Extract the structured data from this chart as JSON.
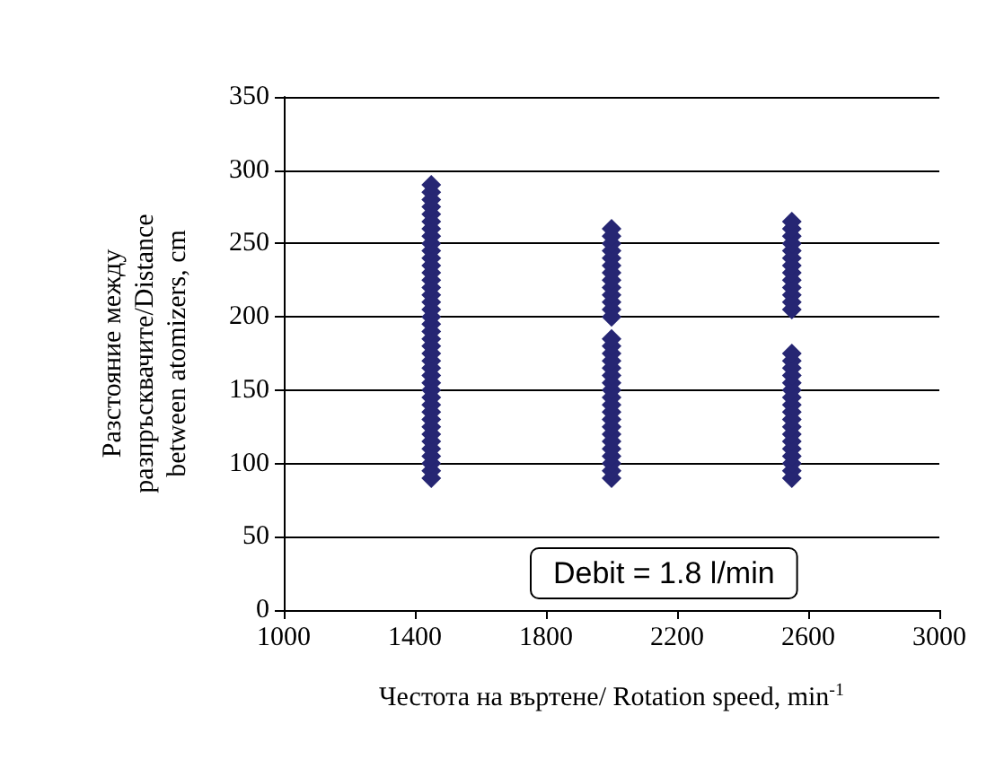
{
  "chart_data": {
    "type": "scatter",
    "xlabel": "Честота на въртене/ Rotation speed, min$^{-1}$",
    "ylabel": "Разстояние между\nразпръсквачите/Distance\nbetween atomizers, cm",
    "annotations": [
      "Debit = 1.8 l/min"
    ],
    "xlim": [
      1000,
      3000
    ],
    "xticks": [
      1000,
      1400,
      1800,
      2200,
      2600,
      3000
    ],
    "ylim": [
      0,
      350
    ],
    "yticks": [
      0,
      50,
      100,
      150,
      200,
      250,
      300,
      350
    ],
    "grid": "y",
    "marker": "diamond",
    "series": [
      {
        "color": "#262673",
        "x": [
          1450,
          1450,
          1450,
          1450,
          1450,
          1450,
          1450,
          1450,
          1450,
          1450,
          1450,
          1450,
          1450,
          1450,
          1450,
          1450,
          1450,
          1450,
          1450,
          1450,
          1450,
          1450,
          1450,
          1450,
          1450,
          1450,
          1450,
          1450,
          1450,
          1450,
          1450,
          1450,
          1450,
          1450,
          1450,
          1450,
          1450,
          1450,
          1450,
          1450,
          1450,
          2000,
          2000,
          2000,
          2000,
          2000,
          2000,
          2000,
          2000,
          2000,
          2000,
          2000,
          2000,
          2000,
          2000,
          2000,
          2000,
          2000,
          2000,
          2000,
          2000,
          2000,
          2000,
          2000,
          2000,
          2000,
          2000,
          2000,
          2000,
          2000,
          2000,
          2000,
          2000,
          2000,
          2550,
          2550,
          2550,
          2550,
          2550,
          2550,
          2550,
          2550,
          2550,
          2550,
          2550,
          2550,
          2550,
          2550,
          2550,
          2550,
          2550,
          2550,
          2550,
          2550,
          2550,
          2550,
          2550,
          2550,
          2550,
          2550,
          2550,
          2550,
          2550,
          2550,
          2550
        ],
        "values": [
          90,
          95,
          100,
          105,
          110,
          115,
          120,
          125,
          130,
          135,
          140,
          145,
          150,
          155,
          160,
          165,
          170,
          175,
          180,
          185,
          190,
          195,
          200,
          205,
          210,
          215,
          220,
          225,
          230,
          235,
          240,
          245,
          250,
          255,
          260,
          265,
          270,
          275,
          280,
          285,
          290,
          90,
          95,
          100,
          105,
          110,
          115,
          120,
          125,
          130,
          135,
          140,
          145,
          150,
          155,
          160,
          165,
          170,
          175,
          180,
          185,
          200,
          205,
          210,
          215,
          220,
          225,
          230,
          235,
          240,
          245,
          250,
          255,
          260,
          90,
          95,
          100,
          105,
          110,
          115,
          120,
          125,
          130,
          135,
          140,
          145,
          150,
          155,
          160,
          165,
          170,
          175,
          205,
          210,
          215,
          220,
          225,
          230,
          235,
          240,
          245,
          250,
          255,
          260,
          265
        ]
      }
    ]
  }
}
